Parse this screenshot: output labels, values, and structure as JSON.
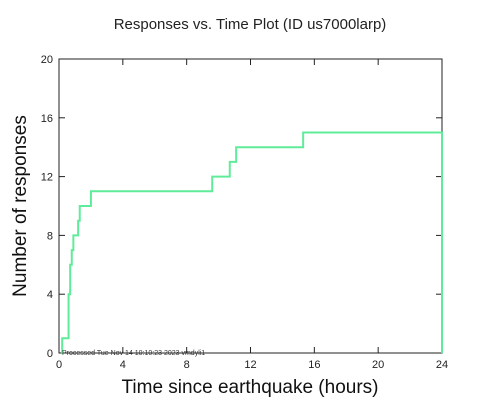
{
  "chart_data": {
    "type": "line",
    "title": "Responses vs. Time Plot (ID us7000larp)",
    "xlabel": "Time since earthquake (hours)",
    "ylabel": "Number of responses",
    "xlim": [
      0,
      24
    ],
    "ylim": [
      0,
      20
    ],
    "x_ticks": [
      0,
      4,
      8,
      12,
      16,
      20,
      24
    ],
    "y_ticks": [
      0,
      4,
      8,
      12,
      16,
      20
    ],
    "grid": false,
    "line_color": "#5fec9a",
    "note": "Processed Tue Nov 14 10:10:23 2023 vmdyli1",
    "series": [
      {
        "step": "post",
        "points": [
          [
            0.15,
            0
          ],
          [
            0.2,
            1
          ],
          [
            0.55,
            1
          ],
          [
            0.6,
            4
          ],
          [
            0.7,
            6
          ],
          [
            0.8,
            7
          ],
          [
            0.9,
            8
          ],
          [
            1.2,
            9
          ],
          [
            1.3,
            10
          ],
          [
            1.9,
            10
          ],
          [
            2.0,
            11
          ],
          [
            9.5,
            11
          ],
          [
            9.6,
            12
          ],
          [
            10.6,
            12
          ],
          [
            10.7,
            13
          ],
          [
            11.0,
            13
          ],
          [
            11.1,
            14
          ],
          [
            15.2,
            14
          ],
          [
            15.3,
            15
          ],
          [
            23.98,
            15
          ],
          [
            24,
            0
          ]
        ]
      }
    ]
  }
}
